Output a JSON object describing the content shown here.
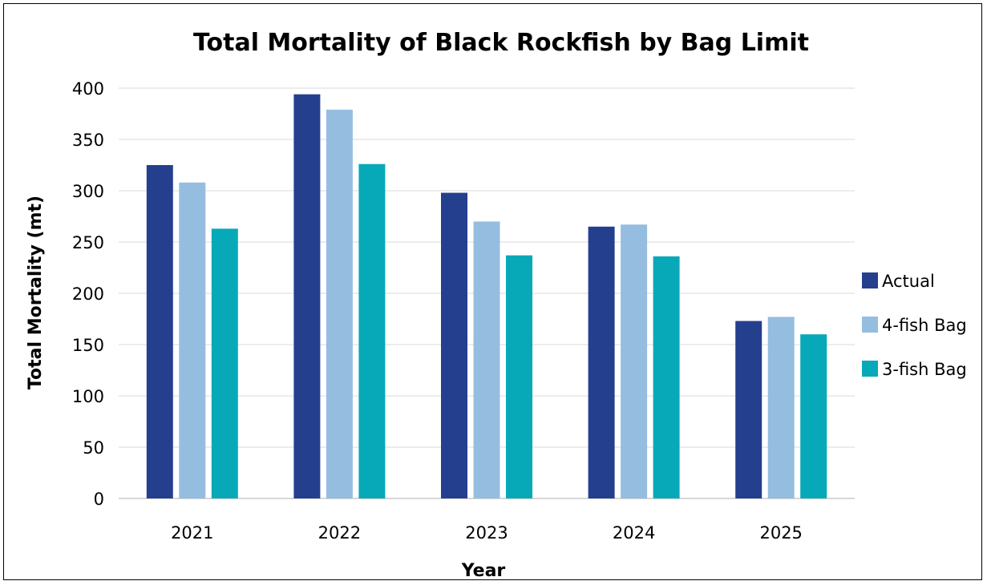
{
  "chart_data": {
    "type": "bar",
    "title": "Total Mortality of Black Rockfish by Bag Limit",
    "xlabel": "Year",
    "ylabel": "Total Mortality (mt)",
    "categories": [
      "2021",
      "2022",
      "2023",
      "2024",
      "2025"
    ],
    "series": [
      {
        "name": "Actual",
        "color": "#253f8f",
        "values": [
          325,
          394,
          298,
          265,
          173
        ]
      },
      {
        "name": "4-fish Bag",
        "color": "#95bde0",
        "values": [
          308,
          379,
          270,
          267,
          177
        ]
      },
      {
        "name": "3-fish Bag",
        "color": "#07a9b8",
        "values": [
          263,
          326,
          237,
          236,
          160
        ]
      }
    ],
    "ylim": [
      0,
      400
    ],
    "yticks": [
      0,
      50,
      100,
      150,
      200,
      250,
      300,
      350,
      400
    ],
    "grid": true,
    "legend": "right"
  }
}
